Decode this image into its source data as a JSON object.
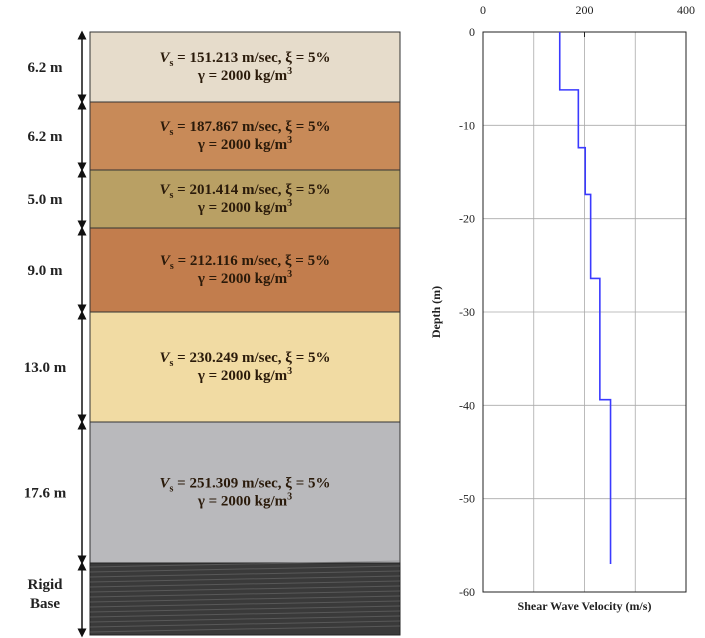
{
  "layers": [
    {
      "thickness": "6.2 m",
      "velocity": {
        "symbol": "V",
        "subscript": "s",
        "text": " = 151.213 m/sec, ξ = 5%"
      },
      "density": {
        "text": "γ = 2000 kg/m",
        "superscript": "3"
      }
    },
    {
      "thickness": "6.2 m",
      "velocity": {
        "symbol": "V",
        "subscript": "s",
        "text": " = 187.867 m/sec, ξ = 5%"
      },
      "density": {
        "text": "γ = 2000 kg/m",
        "superscript": "3"
      }
    },
    {
      "thickness": "5.0 m",
      "velocity": {
        "symbol": "V",
        "subscript": "s",
        "text": " = 201.414 m/sec, ξ = 5%"
      },
      "density": {
        "text": "γ = 2000 kg/m",
        "superscript": "3"
      }
    },
    {
      "thickness": "9.0 m",
      "velocity": {
        "symbol": "V",
        "subscript": "s",
        "text": " = 212.116 m/sec, ξ = 5%"
      },
      "density": {
        "text": "γ = 2000 kg/m",
        "superscript": "3"
      }
    },
    {
      "thickness": "13.0 m",
      "velocity": {
        "symbol": "V",
        "subscript": "s",
        "text": " = 230.249 m/sec, ξ = 5%"
      },
      "density": {
        "text": "γ = 2000 kg/m",
        "superscript": "3"
      }
    },
    {
      "thickness": "17.6 m",
      "velocity": {
        "symbol": "V",
        "subscript": "s",
        "text": " = 251.309 m/sec, ξ = 5%"
      },
      "density": {
        "text": "γ = 2000 kg/m",
        "superscript": "3"
      }
    }
  ],
  "base": {
    "line1": "Rigid",
    "line2": "Base"
  },
  "chart_data": {
    "type": "line",
    "xlabel": "Shear Wave Velocity (m/s)",
    "ylabel": "Depth (m)",
    "x": [
      151.213,
      151.213,
      187.867,
      187.867,
      201.414,
      201.414,
      212.116,
      212.116,
      230.249,
      230.249,
      251.309,
      251.309
    ],
    "values": [
      0,
      -6.2,
      -6.2,
      -12.4,
      -12.4,
      -17.4,
      -17.4,
      -26.4,
      -26.4,
      -39.4,
      -39.4,
      -57
    ],
    "color": "#3a3aff",
    "xlim": [
      0,
      400
    ],
    "ylim": [
      -60,
      0
    ],
    "xticks": [
      0,
      200,
      400
    ],
    "yticks": [
      0,
      -10,
      -20,
      -30,
      -40,
      -50,
      -60
    ],
    "x_gridlines": [
      100,
      200,
      300
    ],
    "grid": true
  }
}
